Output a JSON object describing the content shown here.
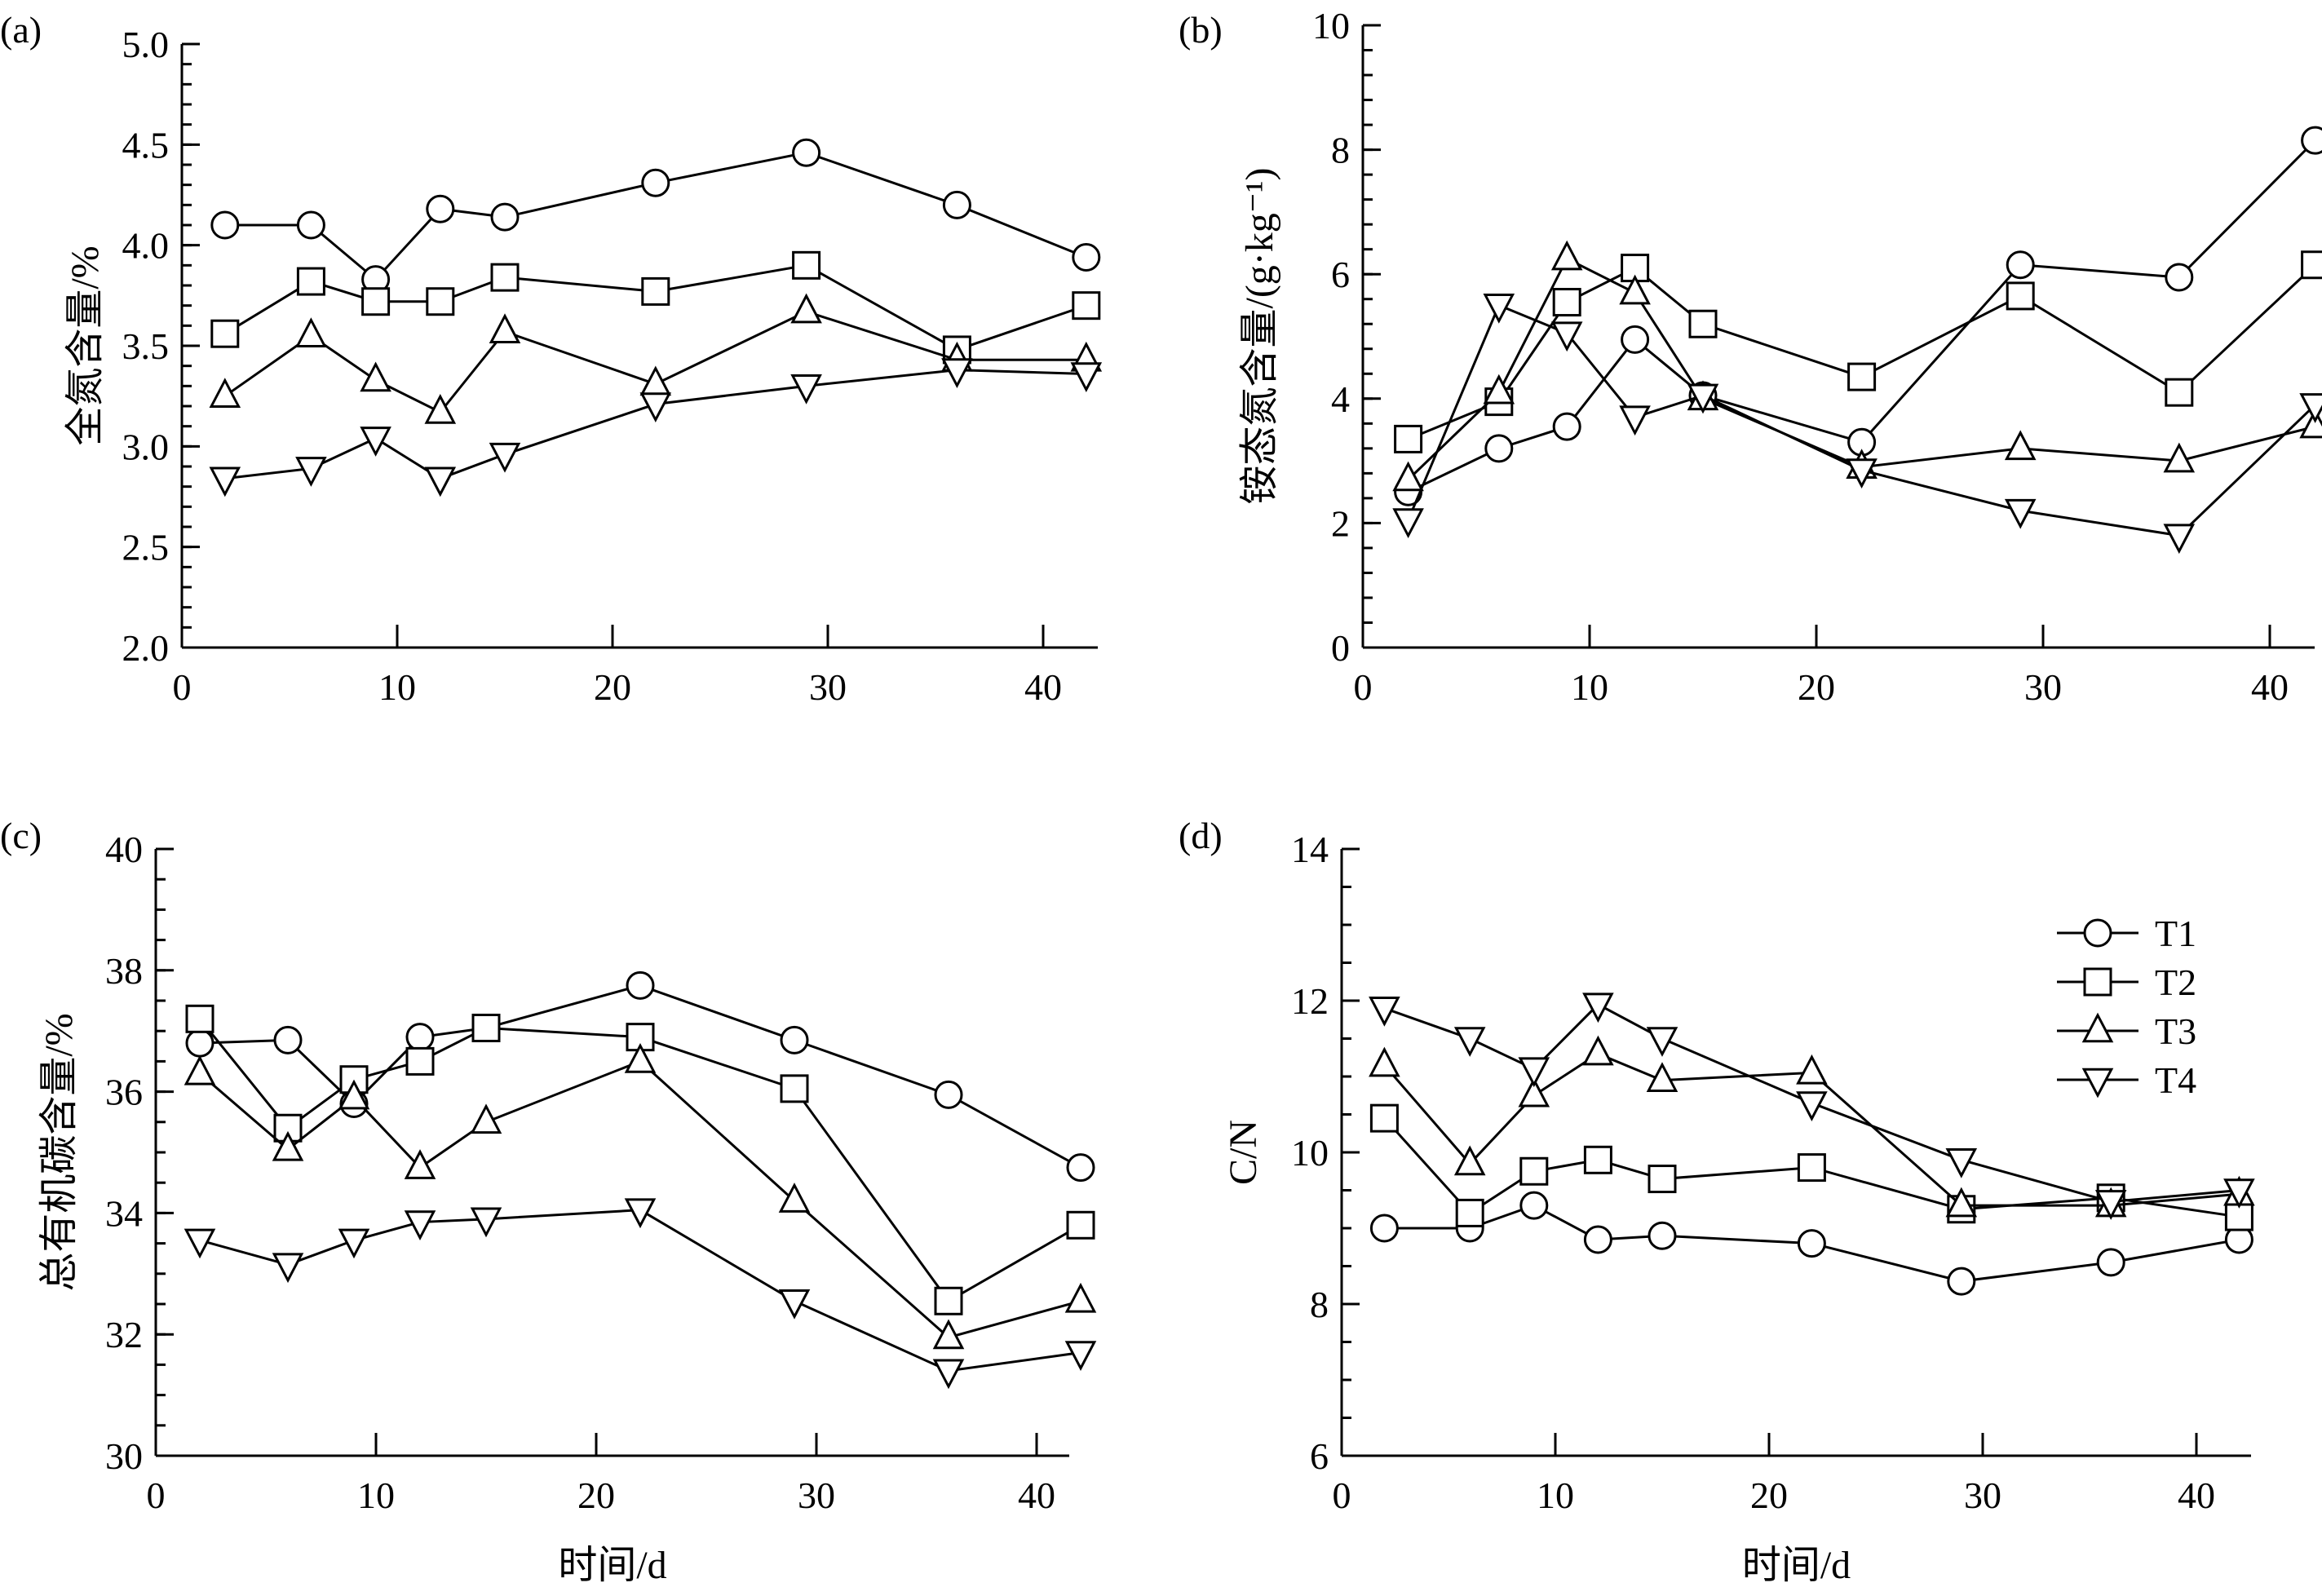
{
  "chart_data": [
    {
      "type": "line",
      "panel_label": "(a)",
      "ylabel": "全氮含量/%",
      "xlabel": "",
      "xlim": [
        0,
        42
      ],
      "ylim": [
        2.0,
        5.0
      ],
      "xticks": [
        0,
        10,
        20,
        30,
        40
      ],
      "yticks": [
        "2.0",
        "2.5",
        "3.0",
        "3.5",
        "4.0",
        "4.5",
        "5.0"
      ],
      "yminor": 0.1,
      "x": [
        2,
        6,
        9,
        12,
        15,
        22,
        29,
        36,
        42
      ],
      "series": [
        {
          "name": "T1",
          "marker": "circle",
          "values": [
            4.1,
            4.1,
            3.83,
            4.18,
            4.14,
            4.31,
            4.46,
            4.2,
            3.94
          ]
        },
        {
          "name": "T2",
          "marker": "square",
          "values": [
            3.56,
            3.82,
            3.72,
            3.72,
            3.84,
            3.77,
            3.9,
            3.48,
            3.7
          ]
        },
        {
          "name": "T3",
          "marker": "triangle-up",
          "values": [
            3.25,
            3.55,
            3.33,
            3.17,
            3.57,
            3.31,
            3.67,
            3.43,
            3.43
          ]
        },
        {
          "name": "T4",
          "marker": "triangle-down",
          "values": [
            2.84,
            2.89,
            3.04,
            2.84,
            2.96,
            3.21,
            3.3,
            3.38,
            3.36
          ]
        }
      ]
    },
    {
      "type": "line",
      "panel_label": "(b)",
      "ylabel": "铵态氮含量/(g·kg⁻¹)",
      "xlabel": "",
      "xlim": [
        0,
        42
      ],
      "ylim": [
        0,
        10
      ],
      "xticks": [
        0,
        10,
        20,
        30,
        40
      ],
      "yticks": [
        "0",
        "2",
        "4",
        "6",
        "8",
        "10"
      ],
      "yminor": 0.4,
      "x": [
        2,
        6,
        9,
        12,
        15,
        22,
        29,
        36,
        42
      ],
      "series": [
        {
          "name": "T1",
          "marker": "circle",
          "values": [
            2.5,
            3.2,
            3.55,
            4.95,
            4.05,
            3.3,
            6.15,
            5.95,
            8.15
          ]
        },
        {
          "name": "T2",
          "marker": "square",
          "values": [
            3.35,
            3.95,
            5.55,
            6.1,
            5.2,
            4.35,
            5.65,
            4.1,
            6.15
          ]
        },
        {
          "name": "T3",
          "marker": "triangle-up",
          "values": [
            2.7,
            4.1,
            6.25,
            5.7,
            4.0,
            2.9,
            3.2,
            3.0,
            3.55
          ]
        },
        {
          "name": "T4",
          "marker": "triangle-down",
          "values": [
            2.05,
            5.5,
            5.05,
            3.7,
            4.05,
            2.85,
            2.2,
            1.8,
            3.9
          ]
        }
      ]
    },
    {
      "type": "line",
      "panel_label": "(c)",
      "ylabel": "总有机碳含量/%",
      "xlabel": "时间/d",
      "xlim": [
        0,
        42
      ],
      "ylim": [
        30,
        40
      ],
      "xticks": [
        0,
        10,
        20,
        30,
        40
      ],
      "yticks": [
        "30",
        "32",
        "34",
        "36",
        "38",
        "40"
      ],
      "yminor": 0.5,
      "x": [
        2,
        6,
        9,
        12,
        15,
        22,
        29,
        36,
        42
      ],
      "series": [
        {
          "name": "T1",
          "marker": "circle",
          "values": [
            36.8,
            36.85,
            35.8,
            36.9,
            37.05,
            37.75,
            36.85,
            35.95,
            34.75
          ]
        },
        {
          "name": "T2",
          "marker": "square",
          "values": [
            37.2,
            35.4,
            36.2,
            36.5,
            37.05,
            36.9,
            36.05,
            32.55,
            33.8
          ]
        },
        {
          "name": "T3",
          "marker": "triangle-up",
          "values": [
            36.3,
            35.05,
            35.9,
            34.75,
            35.5,
            36.5,
            34.2,
            31.95,
            32.55
          ]
        },
        {
          "name": "T4",
          "marker": "triangle-down",
          "values": [
            33.55,
            33.15,
            33.55,
            33.85,
            33.9,
            34.05,
            32.55,
            31.4,
            31.7
          ]
        }
      ]
    },
    {
      "type": "line",
      "panel_label": "(d)",
      "ylabel": "C/N",
      "xlabel": "时间/d",
      "xlim": [
        0,
        42
      ],
      "ylim": [
        6,
        14
      ],
      "xticks": [
        0,
        10,
        20,
        30,
        40
      ],
      "yticks": [
        "6",
        "8",
        "10",
        "12",
        "14"
      ],
      "yminor": 0.5,
      "legend": {
        "placement": "top-right",
        "entries": [
          "T1",
          "T2",
          "T3",
          "T4"
        ]
      },
      "x": [
        2,
        6,
        9,
        12,
        15,
        22,
        29,
        36,
        42
      ],
      "series": [
        {
          "name": "T1",
          "marker": "circle",
          "values": [
            9.0,
            9.0,
            9.3,
            8.85,
            8.9,
            8.8,
            8.3,
            8.55,
            8.85
          ]
        },
        {
          "name": "T2",
          "marker": "square",
          "values": [
            10.45,
            9.2,
            9.75,
            9.9,
            9.65,
            9.8,
            9.25,
            9.4,
            9.15
          ]
        },
        {
          "name": "T3",
          "marker": "triangle-up",
          "values": [
            11.15,
            9.85,
            10.75,
            11.3,
            10.95,
            11.05,
            9.3,
            9.3,
            9.45
          ]
        },
        {
          "name": "T4",
          "marker": "triangle-down",
          "values": [
            11.9,
            11.5,
            11.1,
            11.95,
            11.5,
            10.65,
            9.9,
            9.35,
            9.5
          ]
        }
      ]
    }
  ]
}
